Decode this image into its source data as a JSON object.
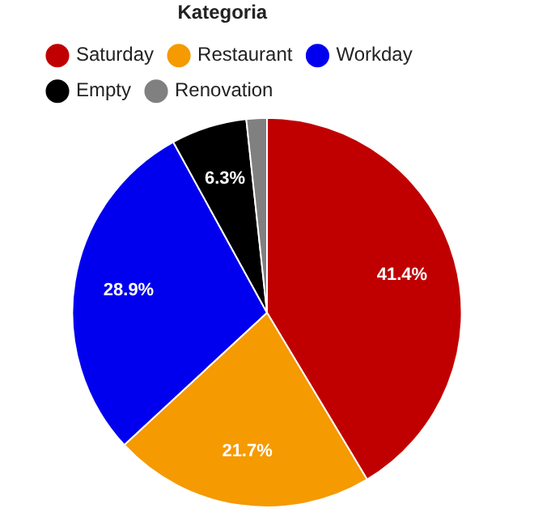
{
  "chart_data": {
    "type": "pie",
    "legend_title": "Kategoria",
    "legend": "top",
    "categories": [
      "Saturday",
      "Restaurant",
      "Workday",
      "Empty",
      "Renovation"
    ],
    "values": [
      41.4,
      21.7,
      28.9,
      6.3,
      1.7
    ],
    "colors": [
      "#c00000",
      "#f59a00",
      "#0000ee",
      "#000000",
      "#808080"
    ],
    "value_labels": [
      "41.4%",
      "21.7%",
      "28.9%",
      "6.3%",
      null
    ]
  }
}
